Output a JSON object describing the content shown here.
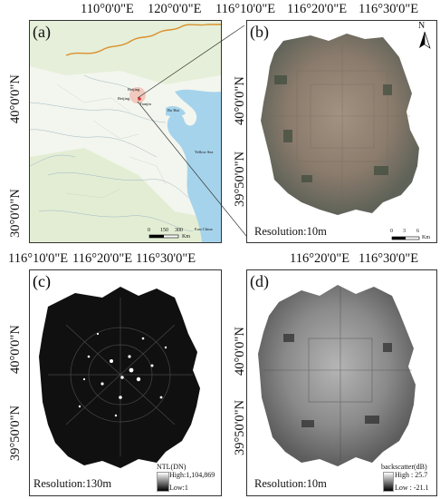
{
  "panels": {
    "a": {
      "label": "(a)",
      "lon_ticks": [
        "110°0'0\"E",
        "120°0'0\"E"
      ],
      "lat_ticks": [
        "40°0'0\"N",
        "30°0'0\"N"
      ],
      "place_labels": {
        "city_top": "Beijing",
        "city": "Beijing",
        "sub": "Tianjin",
        "sea1": "Bo Hai",
        "sea2": "Yellow Sea",
        "sea3": "East China"
      },
      "scale": {
        "ticks": [
          "0",
          "150",
          "300"
        ],
        "unit": "Km"
      }
    },
    "b": {
      "label": "(b)",
      "lon_ticks": [
        "116°10'0\"E",
        "116°20'0\"E",
        "116°30'0\"E"
      ],
      "lat_ticks": [
        "40°0'0\"N",
        "39°50'0\"N"
      ],
      "resolution": "Resolution:10m",
      "north": "N",
      "scale": {
        "ticks": [
          "0",
          "3",
          "6"
        ],
        "unit": "Km"
      }
    },
    "c": {
      "label": "(c)",
      "lon_ticks": [
        "116°10'0\"E",
        "116°20'0\"E",
        "116°30'0\"E"
      ],
      "lat_ticks": [
        "40°0'0\"N",
        "39°50'0\"N"
      ],
      "resolution": "Resolution:130m",
      "legend": {
        "title": "NTL(DN)",
        "high": "High:1,104,869",
        "low": "Low:1"
      }
    },
    "d": {
      "label": "(d)",
      "lon_ticks": [
        "116°20'0\"E",
        "116°30'0\"E"
      ],
      "lat_ticks": [
        "40°0'0\"N",
        "39°50'0\"N"
      ],
      "resolution": "Resolution:10m",
      "legend": {
        "title": "backscatter(dB)",
        "high": "High : 25.7",
        "low": "Low : -21.1"
      }
    }
  },
  "colors": {
    "water": "#a6d3ec",
    "land": "#f3f6ee",
    "border": "#d9902c",
    "rgb_city": "#8d7d6e"
  }
}
